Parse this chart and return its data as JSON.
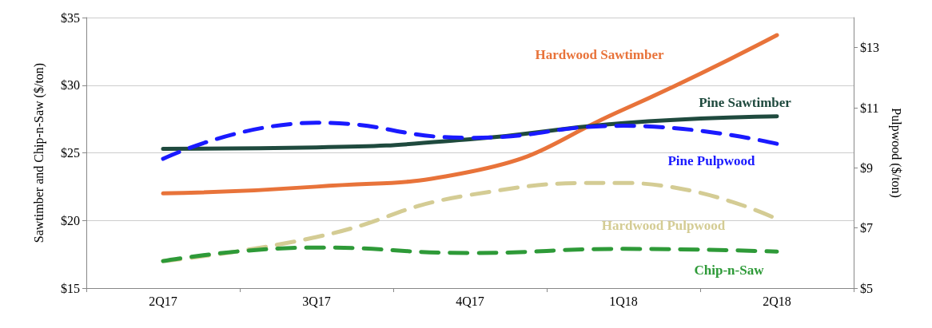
{
  "chart_data": {
    "type": "line",
    "ylabel": "Sawtimber and Chip-n-Saw ($/ton)",
    "y2label": "Pulpwood ($/ton)",
    "categories": [
      "2Q17",
      "3Q17",
      "4Q17",
      "1Q18",
      "2Q18"
    ],
    "series": [
      {
        "name": "Hardwood Sawtimber",
        "color": "#e8733a",
        "values": [
          22.0,
          22.5,
          23.6,
          28.2,
          33.7
        ],
        "line_style": "solid"
      },
      {
        "name": "Pine Sawtimber",
        "color": "#1f4a3e",
        "values": [
          25.3,
          25.4,
          26.0,
          27.2,
          27.7
        ],
        "line_style": "solid"
      },
      {
        "name": "Pine Pulpwood",
        "color": "#1a1aff",
        "values": [
          9.3,
          10.5,
          10.0,
          10.4,
          9.8
        ],
        "axis": "y2",
        "line_style": "dashed"
      },
      {
        "name": "Hardwood Pulpwood",
        "color": "#d4cc94",
        "values": [
          5.9,
          6.7,
          8.1,
          8.5,
          7.3
        ],
        "axis": "y2",
        "line_style": "dashed"
      },
      {
        "name": "Chip-n-Saw",
        "color": "#2e9a38",
        "values": [
          17.0,
          18.0,
          17.6,
          17.9,
          17.7
        ],
        "line_style": "dashed"
      }
    ],
    "ylim": [
      15,
      35
    ],
    "yticks": [
      {
        "value": 15,
        "label": "$15"
      },
      {
        "value": 20,
        "label": "$20"
      },
      {
        "value": 25,
        "label": "$25"
      },
      {
        "value": 30,
        "label": "$30"
      },
      {
        "value": 35,
        "label": "$35"
      }
    ],
    "y2lim": [
      5,
      14
    ],
    "y2ticks": [
      {
        "value": 5,
        "label": "$5"
      },
      {
        "value": 7,
        "label": "$7"
      },
      {
        "value": 9,
        "label": "$9"
      },
      {
        "value": 11,
        "label": "$11"
      },
      {
        "value": 13,
        "label": "$13"
      }
    ],
    "grid": "y",
    "legend": false,
    "marker": "none"
  }
}
